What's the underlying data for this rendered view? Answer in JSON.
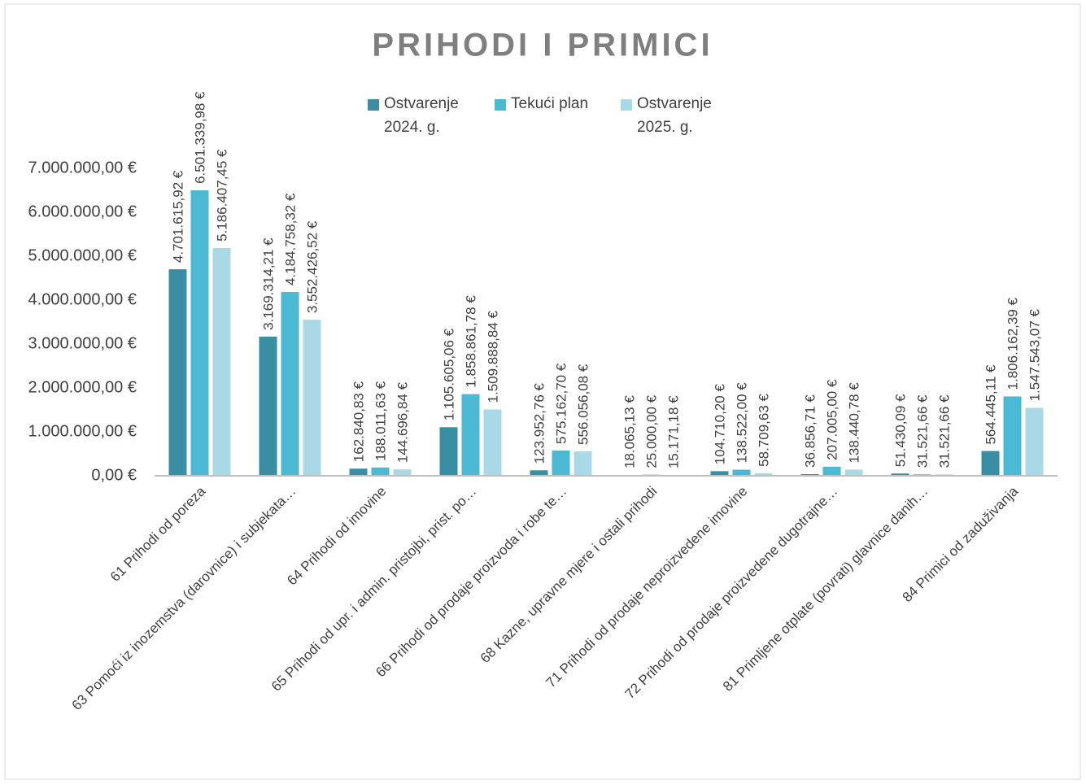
{
  "chart_data": {
    "type": "bar",
    "title": "PRIHODI I PRIMICI",
    "categories": [
      "61 Prihodi od poreza",
      "63 Pomoći iz inozemstva (darovnice) i subjekata…",
      "64 Prihodi od imovine",
      "65 Prihodi od upr. i admin. pristojbi, prist. po…",
      "66 Prihodi od prodaje proizvoda i robe te…",
      "68 Kazne, upravne mjere i ostali prihodi",
      "71 Prihodi od prodaje neproizvedene imovine",
      "72 Prihodi od prodaje proizvedene dugotrajne…",
      "81 Primljene otplate (povrati) glavnice danih…",
      "84 Primici od zaduživanja"
    ],
    "series": [
      {
        "name": "Ostvarenje 2024. g.",
        "color": "#3a8ea3",
        "values": [
          4701615.92,
          3169314.21,
          162840.83,
          1105605.06,
          123952.76,
          18065.13,
          104710.2,
          36856.71,
          51430.09,
          564445.11
        ],
        "value_labels": [
          "4.701.615,92 €",
          "3.169.314,21 €",
          "162.840,83 €",
          "1.105.605,06 €",
          "123.952,76 €",
          "18.065,13 €",
          "104.710,20 €",
          "36.856,71 €",
          "51.430,09 €",
          "564.445,11 €"
        ]
      },
      {
        "name": "Tekući plan",
        "color": "#4bb8d4",
        "values": [
          6501339.98,
          4184758.32,
          188011.63,
          1858861.78,
          575162.7,
          25000.0,
          138522.0,
          207005.0,
          31521.66,
          1806162.39
        ],
        "value_labels": [
          "6.501.339,98 €",
          "4.184.758,32 €",
          "188.011,63 €",
          "1.858.861,78 €",
          "575.162,70 €",
          "25.000,00 €",
          "138.522,00 €",
          "207.005,00 €",
          "31.521,66 €",
          "1.806.162,39 €"
        ]
      },
      {
        "name": "Ostvarenje 2025. g.",
        "color": "#a9d8e6",
        "values": [
          5186407.45,
          3552426.52,
          144696.84,
          1509888.84,
          556056.08,
          15171.18,
          58709.63,
          138440.78,
          31521.66,
          1547543.07
        ],
        "value_labels": [
          "5.186.407,45 €",
          "3.552.426,52 €",
          "144.696,84 €",
          "1.509.888,84 €",
          "556.056,08 €",
          "15.171,18 €",
          "58.709,63 €",
          "138.440,78 €",
          "31.521,66 €",
          "1.547.543,07 €"
        ]
      }
    ],
    "ylim": [
      0,
      7000000
    ],
    "yticks": [
      {
        "value": 0,
        "label": "0,00 €"
      },
      {
        "value": 1000000,
        "label": "1.000.000,00 €"
      },
      {
        "value": 2000000,
        "label": "2.000.000,00 €"
      },
      {
        "value": 3000000,
        "label": "3.000.000,00 €"
      },
      {
        "value": 4000000,
        "label": "4.000.000,00 €"
      },
      {
        "value": 5000000,
        "label": "5.000.000,00 €"
      },
      {
        "value": 6000000,
        "label": "6.000.000,00 €"
      },
      {
        "value": 7000000,
        "label": "7.000.000,00 €"
      }
    ],
    "grid": false,
    "legend": "top"
  }
}
